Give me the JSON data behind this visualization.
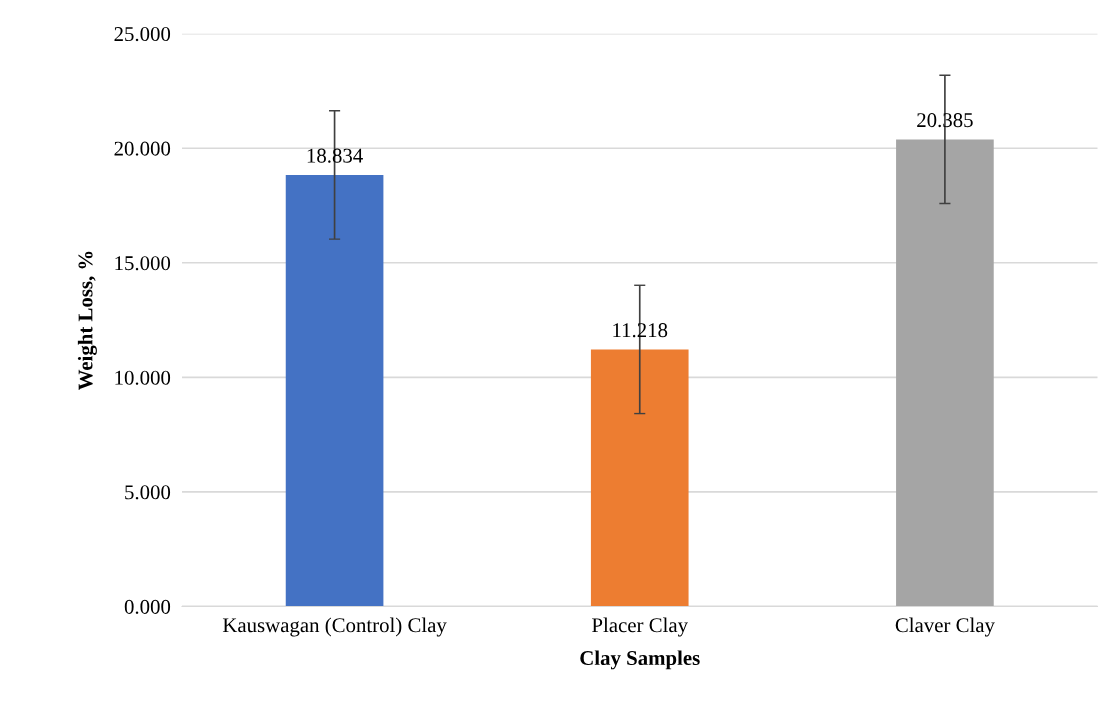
{
  "chart_data": {
    "type": "bar",
    "xlabel": "Clay Samples",
    "ylabel": "Weight Loss, %",
    "categories": [
      "Kauswagan (Control) Clay",
      "Placer Clay",
      "Claver Clay"
    ],
    "values": [
      18.834,
      11.218,
      20.385
    ],
    "colors": [
      "#4472c4",
      "#ed7d31",
      "#a5a5a5"
    ],
    "errors": [
      2.8,
      2.8,
      2.8
    ],
    "ylim": [
      0,
      25
    ],
    "yticks": [
      {
        "value": 0,
        "label": "0.000"
      },
      {
        "value": 5,
        "label": "5.000"
      },
      {
        "value": 10,
        "label": "10.000"
      },
      {
        "value": 15,
        "label": "15.000"
      },
      {
        "value": 20,
        "label": "20.000"
      },
      {
        "value": 25,
        "label": "25.000"
      }
    ],
    "grid": "y",
    "data_labels": true
  }
}
